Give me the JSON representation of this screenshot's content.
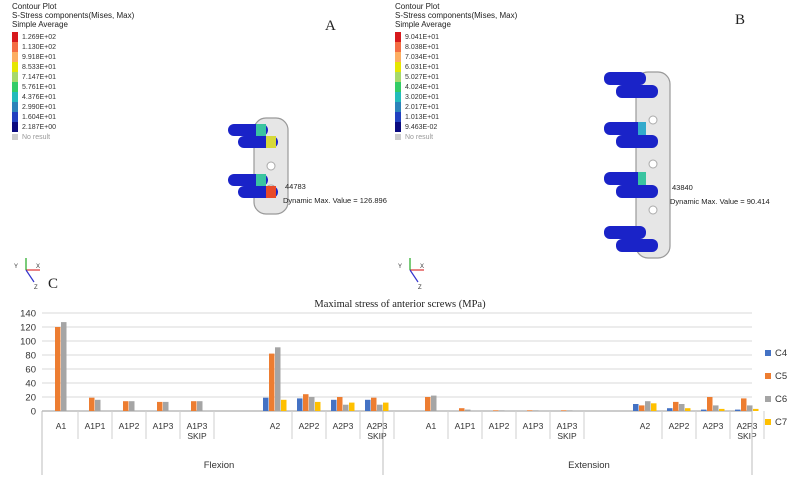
{
  "panel_a": {
    "letter": "A",
    "title_lines": [
      "Contour Plot",
      "S-Stress components(Mises, Max)",
      "Simple Average"
    ],
    "scale_values": [
      "1.269E+02",
      "1.130E+02",
      "9.918E+01",
      "8.533E+01",
      "7.147E+01",
      "5.761E+01",
      "4.376E+01",
      "2.990E+01",
      "1.604E+01",
      "2.187E+00"
    ],
    "no_result": "No result",
    "node_id": "44783",
    "dynamic_max": "Dynamic Max. Value = 126.896"
  },
  "panel_b": {
    "letter": "B",
    "title_lines": [
      "Contour Plot",
      "S-Stress components(Mises, Max)",
      "Simple Average"
    ],
    "scale_values": [
      "9.041E+01",
      "8.038E+01",
      "7.034E+01",
      "6.031E+01",
      "5.027E+01",
      "4.024E+01",
      "3.020E+01",
      "2.017E+01",
      "1.013E+01",
      "9.463E-02"
    ],
    "no_result": "No result",
    "node_id": "43840",
    "dynamic_max": "Dynamic Max. Value = 90.414"
  },
  "scale_colors": [
    "#d7191c",
    "#f46d43",
    "#fdae61",
    "#e6e600",
    "#a6d96a",
    "#33cc66",
    "#22bbbb",
    "#2b83ba",
    "#2040c0",
    "#0a0a80"
  ],
  "triad_labels": {
    "y": "Y",
    "x": "X",
    "z": "Z"
  },
  "panel_c_letter": "C",
  "chart_data": {
    "type": "bar",
    "title": "Maximal stress of anterior screws (MPa)",
    "ylim": [
      0,
      140
    ],
    "yticks": [
      0,
      20,
      40,
      60,
      80,
      100,
      120,
      140
    ],
    "groups": [
      "Flexion",
      "Extension"
    ],
    "categories": [
      "A1",
      "A1P1",
      "A1P2",
      "A1P3",
      "A1P3 SKIP",
      "A2",
      "A2P2",
      "A2P3",
      "A2P3 SKIP"
    ],
    "series": [
      {
        "name": "C4",
        "color": "#4472c4",
        "flexion": [
          0,
          0,
          0,
          0,
          0,
          19,
          18,
          16,
          16
        ],
        "extension": [
          0,
          0,
          0,
          0,
          0,
          10,
          4,
          2,
          2
        ]
      },
      {
        "name": "C5",
        "color": "#ed7d31",
        "flexion": [
          120,
          19,
          14,
          13,
          14,
          82,
          24,
          20,
          19
        ],
        "extension": [
          20,
          4,
          1,
          1,
          1,
          8,
          13,
          20,
          18
        ]
      },
      {
        "name": "C6",
        "color": "#a5a5a5",
        "flexion": [
          127,
          16,
          14,
          13,
          14,
          91,
          20,
          9,
          9
        ],
        "extension": [
          22,
          2,
          1,
          1,
          1,
          14,
          10,
          8,
          8
        ]
      },
      {
        "name": "C7",
        "color": "#ffc000",
        "flexion": [
          0,
          0,
          0,
          0,
          0,
          16,
          13,
          12,
          12
        ],
        "extension": [
          0,
          0,
          0,
          0,
          0,
          11,
          4,
          3,
          3
        ]
      }
    ]
  }
}
